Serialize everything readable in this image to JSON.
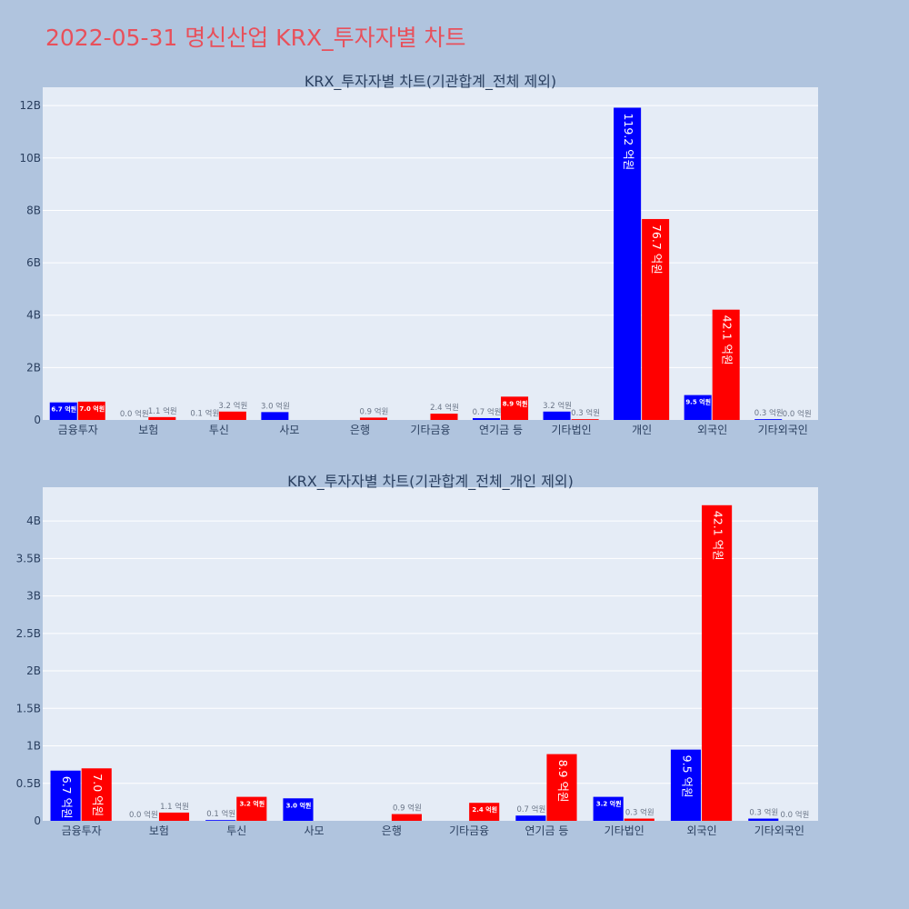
{
  "page": {
    "title": "2022-05-31 명신산업 KRX_투자자별 차트"
  },
  "colors": {
    "buy": "#0000ff",
    "sell": "#ff0000",
    "plot_bg": "#e5ecf6",
    "paper_bg": "#b0c4de",
    "grid": "#ffffff",
    "title": "#e8505b"
  },
  "chart_data": [
    {
      "type": "bar",
      "title": "KRX_투자자별 차트(기관합계_전체 제외)",
      "categories": [
        "금융투자",
        "보험",
        "투신",
        "사모",
        "은행",
        "기타금융",
        "연기금 등",
        "기타법인",
        "개인",
        "외국인",
        "기타외국인"
      ],
      "series": [
        {
          "color": "#0000ff",
          "values": [
            0.67,
            0.0,
            0.01,
            0.3,
            null,
            null,
            0.07,
            0.32,
            11.92,
            0.95,
            0.03
          ],
          "labels": [
            "6.7 억원",
            "0.0 억원",
            "0.1 억원",
            "3.0 억원",
            "",
            "",
            "0.7 억원",
            "3.2 억원",
            "119.2 억원",
            "9.5 억원",
            "0.3 억원"
          ]
        },
        {
          "color": "#ff0000",
          "values": [
            0.7,
            0.11,
            0.32,
            null,
            0.09,
            0.24,
            0.89,
            0.03,
            7.67,
            4.21,
            0.0
          ],
          "labels": [
            "7.0 억원",
            "1.1 억원",
            "3.2 억원",
            "",
            "0.9 억원",
            "2.4 억원",
            "8.9 억원",
            "0.3 억원",
            "76.7 억원",
            "42.1 억원",
            "0.0 억원"
          ]
        }
      ],
      "ylim": [
        0,
        12.7
      ],
      "yticks": [
        0,
        2,
        4,
        6,
        8,
        10,
        12
      ],
      "ytick_labels": [
        "0",
        "2B",
        "4B",
        "6B",
        "8B",
        "10B",
        "12B"
      ],
      "grid": true
    },
    {
      "type": "bar",
      "title": "KRX_투자자별 차트(기관합계_전체_개인 제외)",
      "categories": [
        "금융투자",
        "보험",
        "투신",
        "사모",
        "은행",
        "기타금융",
        "연기금 등",
        "기타법인",
        "외국인",
        "기타외국인"
      ],
      "series": [
        {
          "color": "#0000ff",
          "values": [
            0.67,
            0.0,
            0.01,
            0.3,
            null,
            null,
            0.07,
            0.32,
            0.95,
            0.03
          ],
          "labels": [
            "6.7 억원",
            "0.0 억원",
            "0.1 억원",
            "3.0 억원",
            "",
            "",
            "0.7 억원",
            "3.2 억원",
            "9.5 억원",
            "0.3 억원"
          ]
        },
        {
          "color": "#ff0000",
          "values": [
            0.7,
            0.11,
            0.32,
            null,
            0.09,
            0.24,
            0.89,
            0.03,
            4.21,
            0.0
          ],
          "labels": [
            "7.0 억원",
            "1.1 억원",
            "3.2 억원",
            "",
            "0.9 억원",
            "2.4 억원",
            "8.9 억원",
            "0.3 억원",
            "42.1 억원",
            "0.0 억원"
          ]
        }
      ],
      "ylim": [
        0,
        4.45
      ],
      "yticks": [
        0,
        0.5,
        1,
        1.5,
        2,
        2.5,
        3,
        3.5,
        4
      ],
      "ytick_labels": [
        "0",
        "0.5B",
        "1B",
        "1.5B",
        "2B",
        "2.5B",
        "3B",
        "3.5B",
        "4B"
      ],
      "grid": true
    }
  ]
}
